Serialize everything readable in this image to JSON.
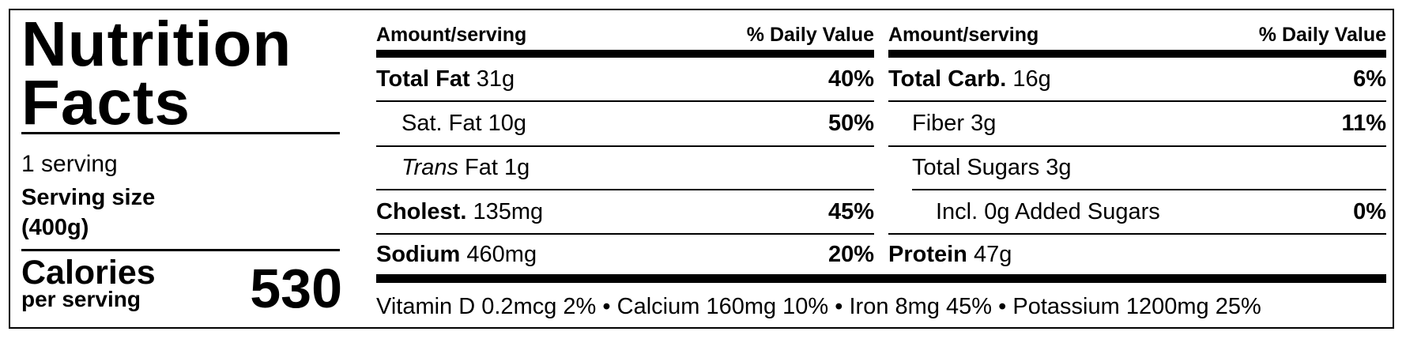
{
  "header": {
    "title": "Nutrition Facts",
    "servings": "1 serving",
    "serving_size_label": "Serving size",
    "serving_size": "(400g)"
  },
  "calories": {
    "label": "Calories",
    "sublabel": "per serving",
    "value": 530
  },
  "left_column": {
    "header_amount": "Amount/serving",
    "header_dv": "% Daily Value",
    "rows": [
      {
        "name": "Total Fat",
        "amount": "31g",
        "dv": "40%"
      },
      {
        "name": "Sat. Fat",
        "amount": "10g",
        "dv": "50%"
      },
      {
        "name_italic": "Trans",
        "name": "Fat",
        "amount": "1g"
      },
      {
        "name": "Cholest.",
        "amount": "135mg",
        "dv": "45%"
      },
      {
        "name": "Sodium",
        "amount": "460mg",
        "dv": "20%"
      }
    ]
  },
  "right_column": {
    "header_amount": "Amount/serving",
    "header_dv": "% Daily Value",
    "rows": [
      {
        "name": "Total Carb.",
        "amount": "16g",
        "dv": "6%"
      },
      {
        "name": "Fiber",
        "amount": "3g",
        "dv": "11%"
      },
      {
        "name": "Total Sugars",
        "amount": "3g"
      },
      {
        "name": "Incl. 0g Added Sugars",
        "dv": "0%"
      },
      {
        "name": "Protein",
        "amount": "47g"
      }
    ]
  },
  "footer": {
    "items": [
      {
        "name": "Vitamin D",
        "amount": "0.2mcg",
        "dv": "2%"
      },
      {
        "name": "Calcium",
        "amount": "160mg",
        "dv": "10%"
      },
      {
        "name": "Iron",
        "amount": "8mg",
        "dv": "45%"
      },
      {
        "name": "Potassium",
        "amount": "1200mg",
        "dv": "25%"
      }
    ]
  }
}
